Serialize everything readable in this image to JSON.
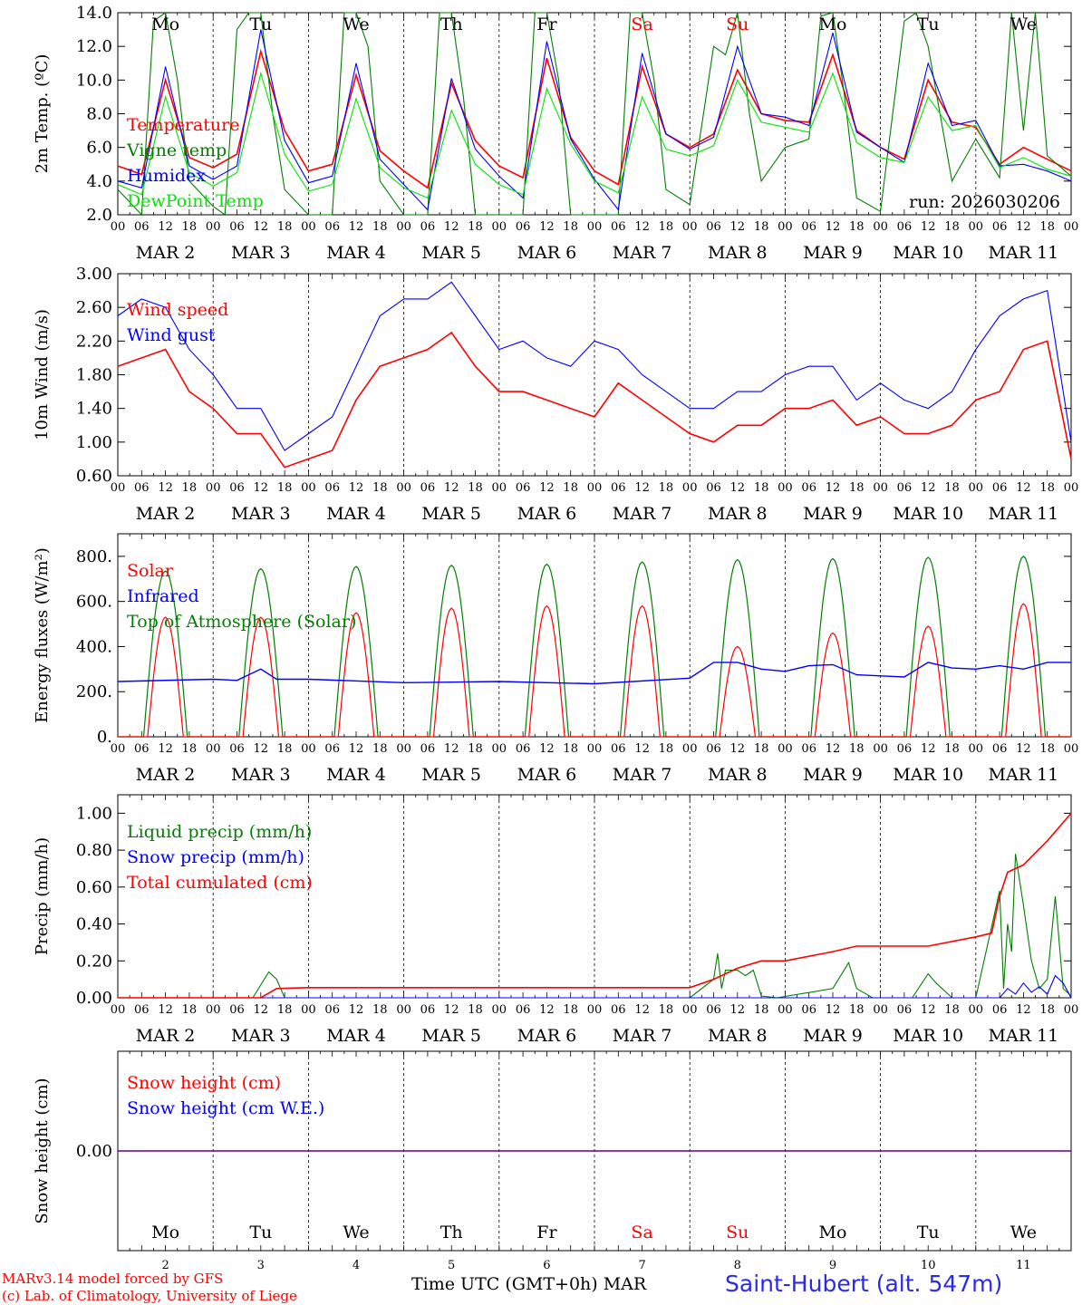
{
  "chart_data": [
    {
      "type": "line",
      "ylabel": "2m Temp. (ºC)",
      "ylim": [
        2,
        14
      ],
      "yticks": [
        "2.0",
        "4.0",
        "6.0",
        "8.0",
        "10.0",
        "12.0",
        "14.0"
      ],
      "x_unit": "hours since 2026-03-02 00 UTC",
      "annotation": "run: 2026030206",
      "legend": [
        "Temperature",
        "Vigne temp",
        "Humidex",
        "DewPoint Temp"
      ],
      "series": [
        {
          "name": "Temperature",
          "color": "#ff0000",
          "x": [
            0,
            6,
            12,
            18,
            24,
            30,
            36,
            42,
            48,
            54,
            60,
            66,
            72,
            78,
            84,
            90,
            96,
            102,
            108,
            114,
            120,
            126,
            132,
            138,
            144,
            150,
            156,
            162,
            168,
            174,
            180,
            186,
            192,
            198,
            204,
            210,
            216,
            222,
            228,
            234,
            240
          ],
          "y": [
            4.9,
            4.4,
            10.0,
            5.4,
            4.8,
            5.6,
            11.7,
            7.0,
            4.6,
            5.0,
            10.3,
            5.8,
            4.6,
            3.6,
            9.8,
            6.4,
            4.9,
            4.2,
            11.3,
            6.6,
            4.6,
            3.8,
            10.8,
            6.8,
            6.0,
            6.8,
            10.6,
            8.0,
            7.6,
            7.5,
            11.5,
            7.0,
            6.0,
            5.3,
            10.0,
            7.5,
            7.2,
            5.0,
            6.0,
            5.3,
            4.6
          ]
        },
        {
          "name": "Vigne temp",
          "color": "#007f00",
          "x": [
            0,
            6,
            9,
            12,
            15,
            18,
            24,
            27,
            30,
            33,
            36,
            39,
            42,
            48,
            54,
            57,
            60,
            63,
            66,
            72,
            78,
            81,
            84,
            87,
            90,
            96,
            102,
            105,
            108,
            111,
            114,
            120,
            126,
            129,
            132,
            135,
            138,
            144,
            150,
            153,
            156,
            159,
            162,
            168,
            174,
            177,
            180,
            183,
            186,
            192,
            198,
            201,
            204,
            207,
            210,
            216,
            222,
            225,
            228,
            231,
            234,
            240
          ],
          "y": [
            3.5,
            2.0,
            13.5,
            14.0,
            10.0,
            4.0,
            2.5,
            2.0,
            13.0,
            14.0,
            14.0,
            8.0,
            3.5,
            2.0,
            2.0,
            14.0,
            14.0,
            12.0,
            4.0,
            2.0,
            2.0,
            14.0,
            14.0,
            9.0,
            2.0,
            2.0,
            2.0,
            14.0,
            14.0,
            10.0,
            2.0,
            2.0,
            2.0,
            14.0,
            14.0,
            10.0,
            3.5,
            2.6,
            12.0,
            11.5,
            14.0,
            8.0,
            4.0,
            6.0,
            6.5,
            13.8,
            14.0,
            9.0,
            3.0,
            2.2,
            13.5,
            14.0,
            12.0,
            8.0,
            4.0,
            6.5,
            4.2,
            14.0,
            7.0,
            14.0,
            5.5,
            4.3
          ]
        },
        {
          "name": "Humidex",
          "color": "#0000ff",
          "x": [
            0,
            6,
            12,
            18,
            24,
            30,
            36,
            42,
            48,
            54,
            60,
            66,
            72,
            78,
            84,
            90,
            96,
            102,
            108,
            114,
            120,
            126,
            132,
            138,
            144,
            150,
            156,
            162,
            168,
            174,
            180,
            186,
            192,
            198,
            204,
            210,
            216,
            222,
            228,
            234,
            240
          ],
          "y": [
            4.0,
            3.6,
            10.8,
            4.9,
            4.1,
            4.9,
            13.0,
            6.4,
            3.9,
            4.3,
            11.0,
            5.3,
            3.8,
            2.3,
            10.1,
            5.9,
            4.3,
            3.0,
            12.3,
            6.5,
            4.1,
            2.3,
            11.6,
            6.8,
            5.9,
            6.6,
            12.0,
            8.0,
            7.8,
            7.3,
            12.8,
            6.9,
            6.0,
            5.1,
            11.0,
            7.3,
            7.6,
            4.9,
            5.0,
            4.6,
            4.0
          ]
        },
        {
          "name": "DewPoint Temp",
          "color": "#00e600",
          "x": [
            0,
            6,
            12,
            18,
            24,
            30,
            36,
            42,
            48,
            54,
            60,
            66,
            72,
            78,
            84,
            90,
            96,
            102,
            108,
            114,
            120,
            126,
            132,
            138,
            144,
            150,
            156,
            162,
            168,
            174,
            180,
            186,
            192,
            198,
            204,
            210,
            216,
            222,
            228,
            234,
            240
          ],
          "y": [
            3.8,
            3.2,
            9.0,
            4.5,
            3.7,
            4.5,
            10.4,
            5.6,
            3.4,
            3.8,
            8.9,
            4.8,
            3.6,
            3.0,
            8.2,
            5.0,
            3.8,
            3.2,
            9.5,
            6.2,
            4.0,
            3.3,
            9.0,
            5.9,
            5.5,
            6.1,
            10.0,
            7.5,
            7.2,
            6.9,
            10.4,
            6.3,
            5.4,
            5.1,
            9.0,
            7.0,
            7.3,
            4.8,
            5.4,
            4.7,
            4.3
          ]
        }
      ]
    },
    {
      "type": "line",
      "ylabel": "10m Wind (m/s)",
      "ylim": [
        0.6,
        3.0
      ],
      "yticks": [
        "0.60",
        "1.00",
        "1.40",
        "1.80",
        "2.20",
        "2.60",
        "3.00"
      ],
      "legend": [
        "Wind speed",
        "Wind gust"
      ],
      "series": [
        {
          "name": "Wind speed",
          "color": "#ff0000",
          "x": [
            0,
            6,
            12,
            18,
            24,
            30,
            36,
            42,
            48,
            54,
            60,
            66,
            72,
            78,
            84,
            90,
            96,
            102,
            108,
            114,
            120,
            126,
            132,
            138,
            144,
            150,
            156,
            162,
            168,
            174,
            180,
            186,
            192,
            198,
            204,
            210,
            216,
            222,
            228,
            234,
            240
          ],
          "y": [
            1.9,
            2.0,
            2.1,
            1.6,
            1.4,
            1.1,
            1.1,
            0.7,
            0.8,
            0.9,
            1.5,
            1.9,
            2.0,
            2.1,
            2.3,
            1.9,
            1.6,
            1.6,
            1.5,
            1.4,
            1.3,
            1.7,
            1.5,
            1.3,
            1.1,
            1.0,
            1.2,
            1.2,
            1.4,
            1.4,
            1.5,
            1.2,
            1.3,
            1.1,
            1.1,
            1.2,
            1.5,
            1.6,
            2.1,
            2.2,
            0.8
          ]
        },
        {
          "name": "Wind gust",
          "color": "#0000ff",
          "x": [
            0,
            6,
            12,
            18,
            24,
            30,
            36,
            42,
            48,
            54,
            60,
            66,
            72,
            78,
            84,
            90,
            96,
            102,
            108,
            114,
            120,
            126,
            132,
            138,
            144,
            150,
            156,
            162,
            168,
            174,
            180,
            186,
            192,
            198,
            204,
            210,
            216,
            222,
            228,
            234,
            240
          ],
          "y": [
            2.5,
            2.7,
            2.6,
            2.1,
            1.8,
            1.4,
            1.4,
            0.9,
            1.1,
            1.3,
            1.9,
            2.5,
            2.7,
            2.7,
            2.9,
            2.5,
            2.1,
            2.2,
            2.0,
            1.9,
            2.2,
            2.1,
            1.8,
            1.6,
            1.4,
            1.4,
            1.6,
            1.6,
            1.8,
            1.9,
            1.9,
            1.5,
            1.7,
            1.5,
            1.4,
            1.6,
            2.1,
            2.5,
            2.7,
            2.8,
            1.0
          ]
        }
      ]
    },
    {
      "type": "line",
      "ylabel": "Energy fluxes (W/m²)",
      "ylim": [
        0,
        900
      ],
      "yticks": [
        "0.",
        "200.",
        "400.",
        "600.",
        "800."
      ],
      "legend": [
        "Solar",
        "Infrared",
        "Top of Atmosphere (Solar)"
      ],
      "toa_peaks": [
        735,
        745,
        755,
        760,
        765,
        775,
        785,
        790,
        795,
        800
      ],
      "solar_peaks": [
        530,
        530,
        550,
        570,
        580,
        580,
        400,
        460,
        490,
        590
      ],
      "series": [
        {
          "name": "Infrared",
          "color": "#0000ff",
          "x": [
            0,
            24,
            30,
            36,
            40,
            48,
            72,
            96,
            120,
            144,
            150,
            156,
            162,
            168,
            174,
            180,
            186,
            192,
            198,
            204,
            210,
            216,
            222,
            228,
            234,
            240
          ],
          "y": [
            245,
            255,
            250,
            300,
            255,
            255,
            240,
            245,
            235,
            260,
            330,
            330,
            300,
            290,
            315,
            320,
            275,
            270,
            265,
            330,
            305,
            300,
            315,
            300,
            330,
            330
          ]
        }
      ]
    },
    {
      "type": "line",
      "ylabel": "Precip (mm/h)",
      "ylim": [
        0,
        1.1
      ],
      "yticks": [
        "0.00",
        "0.20",
        "0.40",
        "0.60",
        "0.80",
        "1.00"
      ],
      "legend": [
        "Liquid precip (mm/h)",
        "Snow precip (mm/h)",
        "Total cumulated (cm)"
      ],
      "series": [
        {
          "name": "Liquid precip (mm/h)",
          "color": "#007f00",
          "x": [
            0,
            34,
            38,
            40,
            42,
            48,
            144,
            150,
            151,
            152,
            153,
            156,
            158,
            160,
            162,
            166,
            180,
            184,
            186,
            190,
            200,
            204,
            206,
            210,
            216,
            222,
            223,
            224,
            225,
            226,
            228,
            230,
            232,
            234,
            236,
            238,
            240
          ],
          "y": [
            0,
            0,
            0.14,
            0.1,
            0,
            0,
            0,
            0.1,
            0.24,
            0.05,
            0.15,
            0.15,
            0.12,
            0.15,
            0.01,
            0,
            0.05,
            0.19,
            0.05,
            0,
            0,
            0.13,
            0.08,
            0,
            0,
            0.58,
            0.05,
            0.4,
            0.25,
            0.78,
            0.5,
            0.2,
            0.05,
            0.1,
            0.55,
            0.05,
            0.01
          ]
        },
        {
          "name": "Snow precip (mm/h)",
          "color": "#0000ff",
          "x": [
            0,
            222,
            224,
            226,
            228,
            230,
            232,
            234,
            236,
            238,
            240
          ],
          "y": [
            0,
            0,
            0.05,
            0.02,
            0.08,
            0.03,
            0.06,
            0.02,
            0.12,
            0.08,
            0
          ]
        },
        {
          "name": "Total cumulated (cm)",
          "color": "#ff0000",
          "x": [
            0,
            36,
            40,
            48,
            144,
            150,
            156,
            162,
            168,
            180,
            186,
            192,
            204,
            216,
            220,
            222,
            224,
            228,
            234,
            240
          ],
          "y": [
            0,
            0,
            0.05,
            0.055,
            0.055,
            0.1,
            0.16,
            0.2,
            0.2,
            0.25,
            0.28,
            0.28,
            0.28,
            0.33,
            0.35,
            0.55,
            0.68,
            0.72,
            0.85,
            1.0
          ]
        }
      ]
    },
    {
      "type": "line",
      "ylabel": "Snow height (cm)",
      "yticks": [
        "0.00"
      ],
      "legend": [
        "Snow height (cm)",
        "Snow height (cm W.E.)"
      ],
      "series": [
        {
          "name": "Snow height (cm)",
          "color": "#ff0000",
          "x": [
            0,
            240
          ],
          "y": [
            0,
            0
          ]
        },
        {
          "name": "Snow height (cm W.E.)",
          "color": "#0000ff",
          "x": [
            0,
            240
          ],
          "y": [
            0,
            0
          ]
        }
      ]
    }
  ],
  "hour_ticks": [
    "00",
    "06",
    "12",
    "18"
  ],
  "day_labels": [
    "MAR  2",
    "MAR  3",
    "MAR  4",
    "MAR  5",
    "MAR  6",
    "MAR  7",
    "MAR  8",
    "MAR  9",
    "MAR 10",
    "MAR 11"
  ],
  "weekdays": [
    "Mo",
    "Tu",
    "We",
    "Th",
    "Fr",
    "Sa",
    "Su",
    "Mo",
    "Tu",
    "We"
  ],
  "weekend_flags": [
    false,
    false,
    false,
    false,
    false,
    true,
    true,
    false,
    false,
    false
  ],
  "day_numbers": [
    "2",
    "3",
    "4",
    "5",
    "6",
    "7",
    "8",
    "9",
    "10",
    "11"
  ],
  "footer": {
    "model": "MARv3.14 model forced by GFS",
    "credit": "(c) Lab. of Climatology, University of Liege",
    "time_axis": "Time UTC (GMT+0h) MAR",
    "station": "Saint-Hubert (alt. 547m)"
  },
  "colors": {
    "weekday": "#000000",
    "weekend": "#ff0000",
    "station": "#2a2aee"
  }
}
